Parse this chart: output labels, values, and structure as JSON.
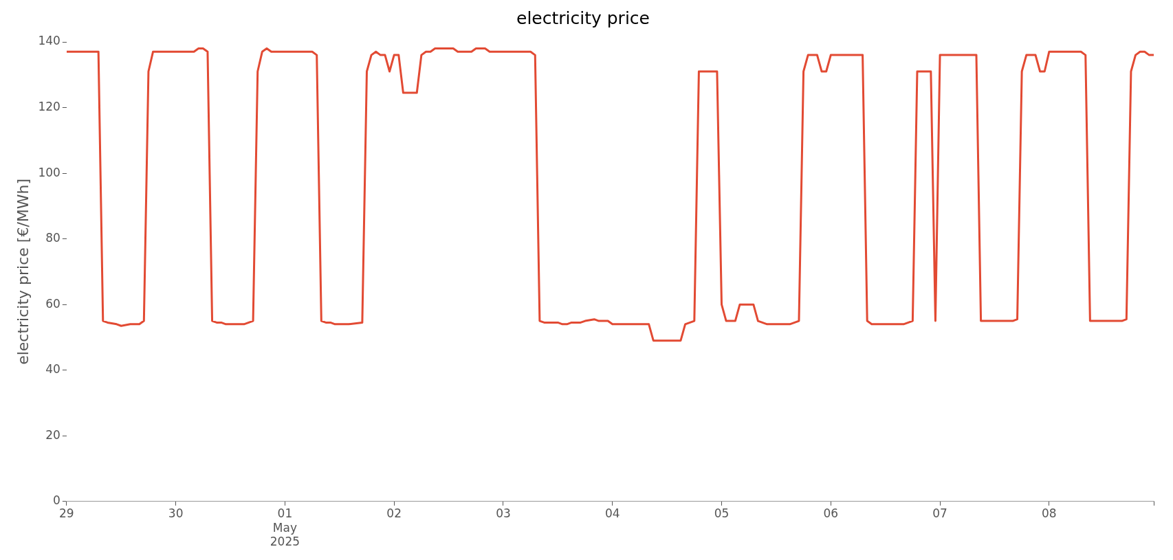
{
  "chart_data": {
    "type": "line",
    "title": "electricity price",
    "ylabel": "electricity price [€/MWh]",
    "x": [
      "2025-04-29T00:00",
      "2025-04-29T07:00",
      "2025-04-29T08:00",
      "2025-04-29T09:00",
      "2025-04-29T11:00",
      "2025-04-29T12:00",
      "2025-04-29T14:00",
      "2025-04-29T16:00",
      "2025-04-29T17:00",
      "2025-04-29T18:00",
      "2025-04-29T19:00",
      "2025-04-30T04:00",
      "2025-04-30T05:00",
      "2025-04-30T06:00",
      "2025-04-30T07:00",
      "2025-04-30T08:00",
      "2025-04-30T09:00",
      "2025-04-30T10:00",
      "2025-04-30T11:00",
      "2025-04-30T13:00",
      "2025-04-30T15:00",
      "2025-04-30T17:00",
      "2025-04-30T18:00",
      "2025-04-30T19:00",
      "2025-04-30T20:00",
      "2025-04-30T21:00",
      "2025-05-01T06:00",
      "2025-05-01T07:00",
      "2025-05-01T08:00",
      "2025-05-01T09:00",
      "2025-05-01T10:00",
      "2025-05-01T11:00",
      "2025-05-01T14:00",
      "2025-05-01T17:00",
      "2025-05-01T18:00",
      "2025-05-01T19:00",
      "2025-05-01T20:00",
      "2025-05-01T21:00",
      "2025-05-01T22:00",
      "2025-05-01T23:00",
      "2025-05-02T00:00",
      "2025-05-02T01:00",
      "2025-05-02T02:00",
      "2025-05-02T05:00",
      "2025-05-02T06:00",
      "2025-05-02T07:00",
      "2025-05-02T08:00",
      "2025-05-02T09:00",
      "2025-05-02T13:00",
      "2025-05-02T14:00",
      "2025-05-02T17:00",
      "2025-05-02T18:00",
      "2025-05-02T20:00",
      "2025-05-02T21:00",
      "2025-05-03T06:00",
      "2025-05-03T07:00",
      "2025-05-03T08:00",
      "2025-05-03T09:00",
      "2025-05-03T12:00",
      "2025-05-03T13:00",
      "2025-05-03T14:00",
      "2025-05-03T15:00",
      "2025-05-03T17:00",
      "2025-05-03T18:00",
      "2025-05-03T20:00",
      "2025-05-03T21:00",
      "2025-05-03T23:00",
      "2025-05-04T00:00",
      "2025-05-04T08:00",
      "2025-05-04T09:00",
      "2025-05-04T15:00",
      "2025-05-04T16:00",
      "2025-05-04T18:00",
      "2025-05-04T19:00",
      "2025-05-04T23:00",
      "2025-05-05T00:00",
      "2025-05-05T01:00",
      "2025-05-05T03:00",
      "2025-05-05T04:00",
      "2025-05-05T07:00",
      "2025-05-05T08:00",
      "2025-05-05T10:00",
      "2025-05-05T15:00",
      "2025-05-05T17:00",
      "2025-05-05T18:00",
      "2025-05-05T19:00",
      "2025-05-05T21:00",
      "2025-05-05T22:00",
      "2025-05-05T23:00",
      "2025-05-06T00:00",
      "2025-05-06T07:00",
      "2025-05-06T08:00",
      "2025-05-06T09:00",
      "2025-05-06T16:00",
      "2025-05-06T18:00",
      "2025-05-06T19:00",
      "2025-05-06T22:00",
      "2025-05-06T23:00",
      "2025-05-07T00:00",
      "2025-05-07T08:00",
      "2025-05-07T09:00",
      "2025-05-07T16:00",
      "2025-05-07T17:00",
      "2025-05-07T18:00",
      "2025-05-07T19:00",
      "2025-05-07T21:00",
      "2025-05-07T22:00",
      "2025-05-07T23:00",
      "2025-05-08T00:00",
      "2025-05-08T07:00",
      "2025-05-08T08:00",
      "2025-05-08T09:00",
      "2025-05-08T16:00",
      "2025-05-08T17:00",
      "2025-05-08T18:00",
      "2025-05-08T19:00",
      "2025-05-08T20:00",
      "2025-05-08T21:00",
      "2025-05-08T22:00",
      "2025-05-08T23:00"
    ],
    "series": [
      {
        "color": "#e24a33",
        "values": [
          137,
          137,
          55,
          54.5,
          54,
          53.5,
          54,
          54,
          55,
          131,
          137,
          137,
          138,
          138,
          137,
          55,
          54.5,
          54.5,
          54,
          54,
          54,
          55,
          131,
          137,
          138,
          137,
          137,
          136,
          55,
          54.5,
          54.5,
          54,
          54,
          54.5,
          131,
          136,
          137,
          136,
          136,
          131,
          136,
          136,
          124.5,
          124.5,
          136,
          137,
          137,
          138,
          138,
          137,
          137,
          138,
          138,
          137,
          137,
          136,
          55,
          54.5,
          54.5,
          54,
          54,
          54.5,
          54.5,
          55,
          55.5,
          55,
          55,
          54,
          54,
          49,
          49,
          54,
          55,
          131,
          131,
          60,
          55,
          55,
          60,
          60,
          55,
          54,
          54,
          55,
          131,
          136,
          136,
          131,
          131,
          136,
          136,
          55,
          54,
          54,
          55,
          131,
          131,
          55,
          136,
          136,
          55,
          55,
          55.5,
          131,
          136,
          136,
          131,
          131,
          137,
          137,
          136,
          55,
          55,
          55.5,
          131,
          136,
          137,
          137,
          136,
          136
        ]
      }
    ],
    "xticks": [
      {
        "value": "2025-04-29",
        "label": "29"
      },
      {
        "value": "2025-04-30",
        "label": "30"
      },
      {
        "value": "2025-05-01",
        "label": "01\nMay\n2025"
      },
      {
        "value": "2025-05-02",
        "label": "02"
      },
      {
        "value": "2025-05-03",
        "label": "03"
      },
      {
        "value": "2025-05-04",
        "label": "04"
      },
      {
        "value": "2025-05-05",
        "label": "05"
      },
      {
        "value": "2025-05-06",
        "label": "06"
      },
      {
        "value": "2025-05-07",
        "label": "07"
      },
      {
        "value": "2025-05-08",
        "label": "08"
      },
      {
        "value": "2025-05-08T23:00",
        "label": null
      }
    ],
    "xlim": [
      "2025-04-29T00:00",
      "2025-05-08T23:00"
    ],
    "ylim": [
      0,
      140
    ],
    "yticks": [
      0,
      20,
      40,
      60,
      80,
      100,
      120,
      140
    ],
    "grid": false,
    "legend": false,
    "line_style": "solid",
    "marker": "none"
  }
}
